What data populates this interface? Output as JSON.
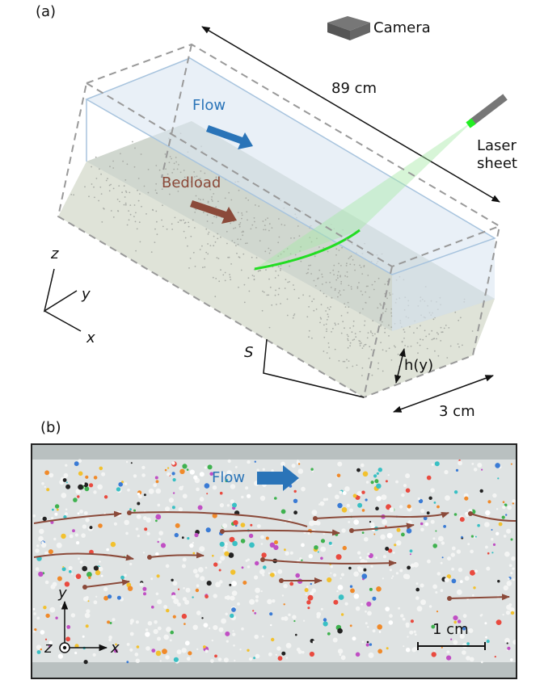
{
  "panel_a": {
    "label": "(a)",
    "camera": "Camera",
    "length": "89 cm",
    "flow": "Flow",
    "laser": [
      "Laser",
      "sheet"
    ],
    "bedload": "Bedload",
    "axes": {
      "z": "z",
      "y": "y",
      "x": "x"
    },
    "slope": "S",
    "depth": "h(y)",
    "width": "3 cm"
  },
  "panel_b": {
    "label": "(b)",
    "flow": "Flow",
    "axes": {
      "y": "y",
      "z": "z",
      "x": "x"
    },
    "scale": "1 cm"
  }
}
